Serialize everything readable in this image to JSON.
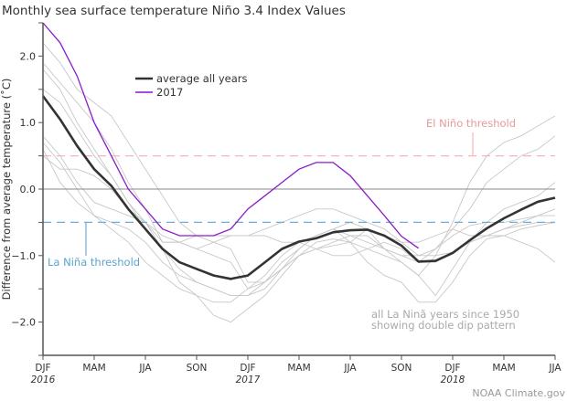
{
  "chart_data": {
    "type": "line",
    "title": "Monthly sea surface temperature Niño 3.4 Index Values",
    "ylabel": "Difference from average temperature (˚C)",
    "xlabel": "",
    "ylim": [
      -2.5,
      2.5
    ],
    "yticks": [
      {
        "value": 2.0,
        "label": "2.0"
      },
      {
        "value": 1.0,
        "label": "1.0"
      },
      {
        "value": 0.0,
        "label": "0.0"
      },
      {
        "value": -1.0,
        "label": "−1.0"
      },
      {
        "value": -2.0,
        "label": "−2.0"
      }
    ],
    "xticks": [
      {
        "index": 0,
        "label": "DJF",
        "year": "2016"
      },
      {
        "index": 3,
        "label": "MAM",
        "year": ""
      },
      {
        "index": 6,
        "label": "JJA",
        "year": ""
      },
      {
        "index": 9,
        "label": "SON",
        "year": ""
      },
      {
        "index": 12,
        "label": "DJF",
        "year": "2017"
      },
      {
        "index": 15,
        "label": "MAM",
        "year": ""
      },
      {
        "index": 18,
        "label": "JJA",
        "year": ""
      },
      {
        "index": 21,
        "label": "SON",
        "year": ""
      },
      {
        "index": 24,
        "label": "DJF",
        "year": "2018"
      },
      {
        "index": 27,
        "label": "MAM",
        "year": ""
      },
      {
        "index": 30,
        "label": "JJA",
        "year": ""
      }
    ],
    "grid": false,
    "thresholds": [
      {
        "name": "El Niño threshold",
        "value": 0.5,
        "color": "#f4b8b8",
        "text_color": "#e89a9a"
      },
      {
        "name": "La Niña threshold",
        "value": -0.5,
        "color": "#6aaedc",
        "text_color": "#5ba3d0"
      }
    ],
    "legend_placement": "top-center",
    "series": [
      {
        "name": "average all years",
        "color": "#333333",
        "values": [
          1.4,
          1.05,
          0.65,
          0.3,
          0.05,
          -0.3,
          -0.6,
          -0.9,
          -1.1,
          -1.2,
          -1.3,
          -1.35,
          -1.3,
          -1.1,
          -0.9,
          -0.79,
          -0.74,
          -0.65,
          -0.62,
          -0.61,
          -0.7,
          -0.85,
          -1.09,
          -1.08,
          -0.96,
          -0.77,
          -0.59,
          -0.44,
          -0.31,
          -0.19,
          -0.13
        ]
      },
      {
        "name": "2017",
        "color": "#8a1cc9",
        "values": [
          2.5,
          2.2,
          1.7,
          1.0,
          0.5,
          0.0,
          -0.3,
          -0.6,
          -0.7,
          -0.7,
          -0.7,
          -0.6,
          -0.3,
          -0.1,
          0.1,
          0.3,
          0.4,
          0.4,
          0.2,
          -0.1,
          -0.4,
          -0.71,
          -0.89
        ]
      }
    ],
    "background_series_color": "#c8c8c8",
    "background_series": [
      [
        2.2,
        1.9,
        1.5,
        1.3,
        1.1,
        0.7,
        0.3,
        -0.1,
        -0.5,
        -0.7,
        -0.8,
        -0.9,
        -1.4,
        -1.4,
        -1.1,
        -0.9,
        -0.7,
        -0.6,
        -0.5,
        -0.6,
        -0.9,
        -1.1,
        -1.3,
        -1.0,
        -0.5,
        0.1,
        0.5,
        0.7,
        0.8,
        0.95,
        1.1
      ],
      [
        1.8,
        1.5,
        1.0,
        0.6,
        0.2,
        -0.2,
        -0.5,
        -0.9,
        -1.4,
        -1.6,
        -1.9,
        -2.0,
        -1.8,
        -1.6,
        -1.3,
        -1.0,
        -0.9,
        -0.8,
        -0.7,
        -0.7,
        -0.9,
        -1.0,
        -1.1,
        -0.9,
        -0.6,
        -0.3,
        0.1,
        0.3,
        0.5,
        0.6,
        0.8
      ],
      [
        1.5,
        1.3,
        0.9,
        0.5,
        0.2,
        -0.2,
        -0.6,
        -0.9,
        -1.2,
        -1.4,
        -1.5,
        -1.6,
        -1.6,
        -1.4,
        -1.2,
        -1.0,
        -0.9,
        -0.85,
        -0.8,
        -0.6,
        -0.7,
        -0.8,
        -1.0,
        -0.9,
        -0.7,
        -0.55,
        -0.5,
        -0.5,
        -0.45,
        -0.4,
        -0.4
      ],
      [
        0.8,
        0.5,
        0.1,
        -0.2,
        -0.3,
        -0.4,
        -0.5,
        -0.7,
        -0.8,
        -0.9,
        -1.0,
        -1.1,
        -1.5,
        -1.4,
        -1.2,
        -1.0,
        -0.8,
        -0.75,
        -0.8,
        -0.9,
        -1.0,
        -1.1,
        -1.3,
        -1.6,
        -1.2,
        -0.8,
        -0.5,
        -0.3,
        -0.2,
        -0.1,
        0.1
      ],
      [
        0.7,
        0.4,
        0.0,
        -0.4,
        -0.6,
        -0.8,
        -1.1,
        -1.3,
        -1.5,
        -1.6,
        -1.7,
        -1.7,
        -1.5,
        -1.3,
        -1.0,
        -0.8,
        -0.7,
        -0.6,
        -0.8,
        -1.1,
        -1.3,
        -1.4,
        -1.7,
        -1.7,
        -1.4,
        -1.0,
        -0.75,
        -0.7,
        -0.6,
        -0.55,
        -0.5
      ],
      [
        0.5,
        0.3,
        0.3,
        0.2,
        0.0,
        -0.3,
        -0.5,
        -0.8,
        -0.8,
        -0.7,
        -0.7,
        -0.7,
        -0.7,
        -0.6,
        -0.5,
        -0.4,
        -0.3,
        -0.3,
        -0.4,
        -0.5,
        -0.6,
        -0.8,
        -0.8,
        -0.7,
        -0.6,
        -0.7,
        -0.7,
        -0.7,
        -0.8,
        -0.9,
        -1.1
      ],
      [
        0.6,
        0.1,
        -0.2,
        -0.4,
        -0.5,
        -0.6,
        -0.8,
        -1.1,
        -1.3,
        -1.4,
        -1.5,
        -1.6,
        -1.6,
        -1.5,
        -1.2,
        -0.9,
        -0.7,
        -0.6,
        -0.7,
        -0.8,
        -0.9,
        -1.0,
        -1.0,
        -1.0,
        -0.95,
        -0.8,
        -0.7,
        -0.6,
        -0.55,
        -0.5,
        -0.5
      ],
      [
        1.9,
        1.6,
        1.3,
        1.0,
        0.6,
        0.1,
        -0.3,
        -0.8,
        -0.8,
        -0.9,
        -0.8,
        -0.7,
        -0.7,
        -0.7,
        -0.8,
        -0.8,
        -0.9,
        -1.0,
        -1.0,
        -0.9,
        -0.8,
        -0.9,
        -1.1,
        -1.1,
        -0.95,
        -0.8,
        -0.7,
        -0.6,
        -0.5,
        -0.4,
        -0.3
      ]
    ],
    "annotations": {
      "background_line1": "all La Ninã years since 1950",
      "background_line2": "showing double dip pattern"
    }
  },
  "credit": "NOAA Climate.gov"
}
